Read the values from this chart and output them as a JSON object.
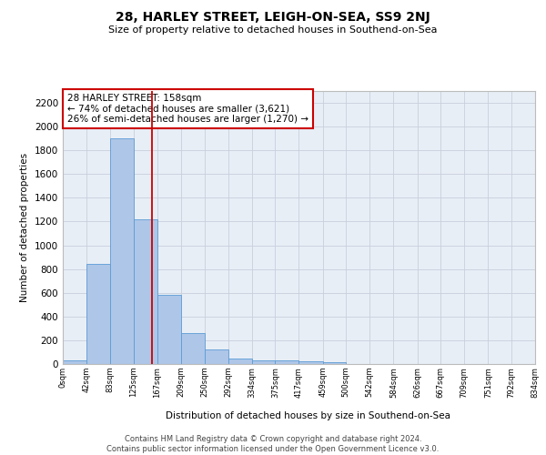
{
  "title": "28, HARLEY STREET, LEIGH-ON-SEA, SS9 2NJ",
  "subtitle": "Size of property relative to detached houses in Southend-on-Sea",
  "xlabel": "Distribution of detached houses by size in Southend-on-Sea",
  "ylabel": "Number of detached properties",
  "bar_color": "#aec6e8",
  "bar_edge_color": "#5b9bd5",
  "background_color": "#e8eef6",
  "annotation_text": "28 HARLEY STREET: 158sqm\n← 74% of detached houses are smaller (3,621)\n26% of semi-detached houses are larger (1,270) →",
  "vline_color": "#cc0000",
  "bin_edges": [
    0,
    42,
    83,
    125,
    167,
    209,
    250,
    292,
    334,
    375,
    417,
    459,
    500,
    542,
    584,
    626,
    667,
    709,
    751,
    792,
    834
  ],
  "bar_heights": [
    28,
    840,
    1900,
    1220,
    580,
    258,
    120,
    45,
    32,
    28,
    20,
    15,
    0,
    0,
    0,
    0,
    0,
    0,
    0,
    0
  ],
  "ylim": [
    0,
    2300
  ],
  "yticks": [
    0,
    200,
    400,
    600,
    800,
    1000,
    1200,
    1400,
    1600,
    1800,
    2000,
    2200
  ],
  "footer_text": "Contains HM Land Registry data © Crown copyright and database right 2024.\nContains public sector information licensed under the Open Government Licence v3.0.",
  "tick_labels": [
    "0sqm",
    "42sqm",
    "83sqm",
    "125sqm",
    "167sqm",
    "209sqm",
    "250sqm",
    "292sqm",
    "334sqm",
    "375sqm",
    "417sqm",
    "459sqm",
    "500sqm",
    "542sqm",
    "584sqm",
    "626sqm",
    "667sqm",
    "709sqm",
    "751sqm",
    "792sqm",
    "834sqm"
  ]
}
